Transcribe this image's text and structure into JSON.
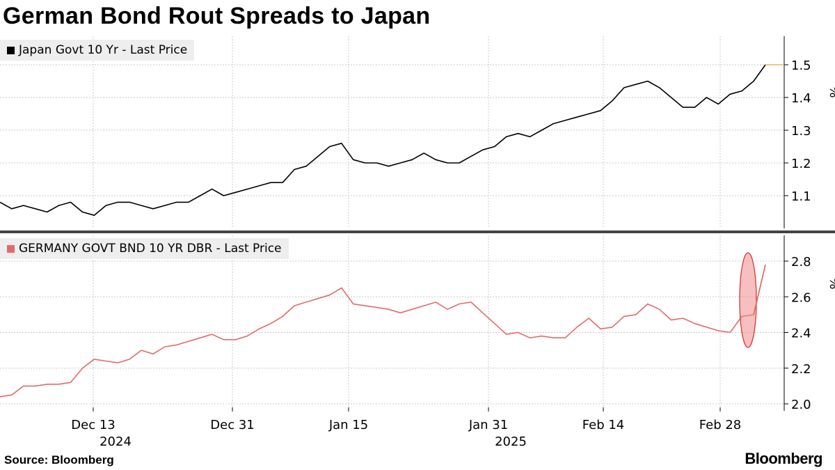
{
  "title": "German Bond Rout Spreads to Japan",
  "source": "Source: Bloomberg",
  "brand": "Bloomberg",
  "colors": {
    "japan": "#000000",
    "germany": "#e46a6a",
    "highlight_fill": "#f08a8a",
    "highlight_stroke": "#d23a3a",
    "last_marker": "#e8a33a",
    "grid": "#c8c8c8",
    "divider": "#444444"
  },
  "x_labels": [
    {
      "label": "Dec 13",
      "year": "2024"
    },
    {
      "label": "Dec 31",
      "year": ""
    },
    {
      "label": "Jan 15",
      "year": ""
    },
    {
      "label": "Jan 31",
      "year": "2025"
    },
    {
      "label": "Feb 14",
      "year": ""
    },
    {
      "label": "Feb 28",
      "year": ""
    }
  ],
  "chart_data": [
    {
      "type": "line",
      "panel": "top",
      "legend": "Japan Govt 10 Yr - Last Price",
      "y_unit": "%",
      "ylim": [
        1.0,
        1.55
      ],
      "yticks": [
        "1.1",
        "1.2",
        "1.3",
        "1.4",
        "1.5"
      ],
      "grid": true,
      "legend_position": "top-left",
      "series": [
        {
          "name": "Japan Govt 10 Yr - Last Price",
          "values": [
            1.08,
            1.06,
            1.07,
            1.06,
            1.05,
            1.07,
            1.08,
            1.05,
            1.04,
            1.07,
            1.08,
            1.08,
            1.07,
            1.06,
            1.07,
            1.08,
            1.08,
            1.1,
            1.12,
            1.1,
            1.11,
            1.12,
            1.13,
            1.14,
            1.14,
            1.18,
            1.19,
            1.22,
            1.25,
            1.26,
            1.21,
            1.2,
            1.2,
            1.19,
            1.2,
            1.21,
            1.23,
            1.21,
            1.2,
            1.2,
            1.22,
            1.24,
            1.25,
            1.28,
            1.29,
            1.28,
            1.3,
            1.32,
            1.33,
            1.34,
            1.35,
            1.36,
            1.39,
            1.43,
            1.44,
            1.45,
            1.43,
            1.4,
            1.37,
            1.37,
            1.4,
            1.38,
            1.41,
            1.42,
            1.45,
            1.5
          ]
        }
      ]
    },
    {
      "type": "line",
      "panel": "bottom",
      "legend": "GERMANY GOVT BND 10 YR DBR - Last Price",
      "y_unit": "%",
      "ylim": [
        1.95,
        2.95
      ],
      "yticks": [
        "2.0",
        "2.2",
        "2.4",
        "2.6",
        "2.8"
      ],
      "grid": true,
      "legend_position": "top-left",
      "series": [
        {
          "name": "GERMANY GOVT BND 10 YR DBR - Last Price",
          "values": [
            2.04,
            2.05,
            2.1,
            2.1,
            2.11,
            2.11,
            2.12,
            2.2,
            2.25,
            2.24,
            2.23,
            2.25,
            2.3,
            2.28,
            2.32,
            2.33,
            2.35,
            2.37,
            2.39,
            2.36,
            2.36,
            2.38,
            2.42,
            2.45,
            2.49,
            2.55,
            2.57,
            2.59,
            2.61,
            2.65,
            2.56,
            2.55,
            2.54,
            2.53,
            2.51,
            2.53,
            2.55,
            2.57,
            2.53,
            2.56,
            2.57,
            2.51,
            2.45,
            2.39,
            2.4,
            2.37,
            2.38,
            2.37,
            2.37,
            2.43,
            2.48,
            2.42,
            2.43,
            2.49,
            2.5,
            2.56,
            2.53,
            2.47,
            2.48,
            2.45,
            2.43,
            2.41,
            2.4,
            2.49,
            2.5,
            2.78
          ]
        }
      ]
    }
  ]
}
